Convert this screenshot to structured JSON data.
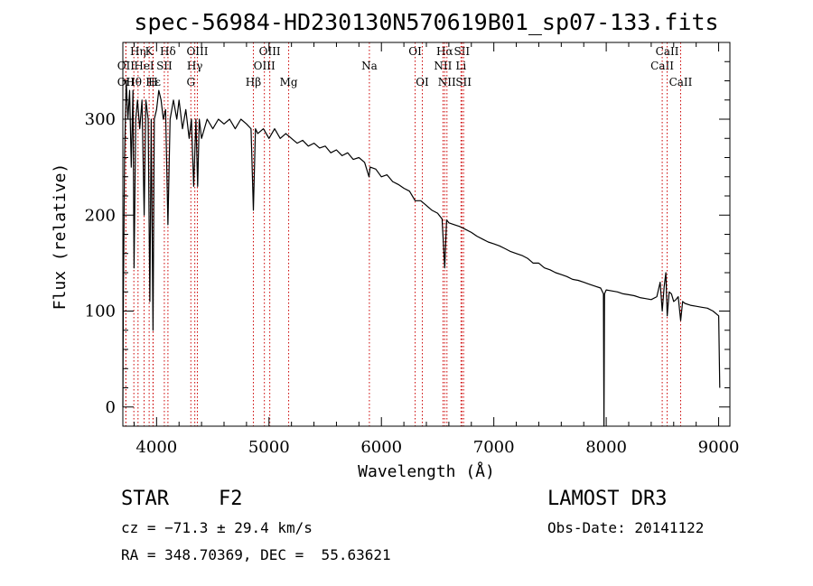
{
  "chart_data": {
    "type": "line",
    "title": "spec-56984-HD230130N570619B01_sp07-133.fits",
    "xlabel": "Wavelength (Å)",
    "ylabel": "Flux (relative)",
    "xlim": [
      3700,
      9100
    ],
    "ylim": [
      -20,
      380
    ],
    "xticks": [
      4000,
      5000,
      6000,
      7000,
      8000,
      9000
    ],
    "yticks": [
      0,
      100,
      200,
      300
    ],
    "grid": false,
    "series": [
      {
        "name": "spectrum",
        "points": [
          [
            3700,
            0
          ],
          [
            3705,
            120
          ],
          [
            3715,
            260
          ],
          [
            3730,
            340
          ],
          [
            3745,
            300
          ],
          [
            3760,
            330
          ],
          [
            3775,
            250
          ],
          [
            3790,
            330
          ],
          [
            3800,
            145
          ],
          [
            3815,
            300
          ],
          [
            3830,
            320
          ],
          [
            3850,
            290
          ],
          [
            3870,
            320
          ],
          [
            3890,
            200
          ],
          [
            3905,
            320
          ],
          [
            3925,
            300
          ],
          [
            3940,
            110
          ],
          [
            3952,
            300
          ],
          [
            3968,
            80
          ],
          [
            3980,
            300
          ],
          [
            4000,
            310
          ],
          [
            4020,
            330
          ],
          [
            4040,
            320
          ],
          [
            4060,
            300
          ],
          [
            4080,
            310
          ],
          [
            4101,
            190
          ],
          [
            4120,
            300
          ],
          [
            4150,
            320
          ],
          [
            4180,
            300
          ],
          [
            4200,
            320
          ],
          [
            4230,
            290
          ],
          [
            4260,
            310
          ],
          [
            4290,
            280
          ],
          [
            4310,
            300
          ],
          [
            4330,
            230
          ],
          [
            4350,
            300
          ],
          [
            4365,
            230
          ],
          [
            4380,
            300
          ],
          [
            4400,
            280
          ],
          [
            4450,
            300
          ],
          [
            4500,
            290
          ],
          [
            4550,
            300
          ],
          [
            4600,
            295
          ],
          [
            4650,
            300
          ],
          [
            4700,
            290
          ],
          [
            4750,
            300
          ],
          [
            4800,
            295
          ],
          [
            4840,
            290
          ],
          [
            4861,
            205
          ],
          [
            4880,
            290
          ],
          [
            4900,
            285
          ],
          [
            4950,
            290
          ],
          [
            5000,
            280
          ],
          [
            5050,
            290
          ],
          [
            5100,
            280
          ],
          [
            5150,
            285
          ],
          [
            5200,
            280
          ],
          [
            5250,
            275
          ],
          [
            5300,
            278
          ],
          [
            5350,
            272
          ],
          [
            5400,
            275
          ],
          [
            5450,
            270
          ],
          [
            5500,
            272
          ],
          [
            5550,
            265
          ],
          [
            5600,
            268
          ],
          [
            5650,
            262
          ],
          [
            5700,
            265
          ],
          [
            5750,
            258
          ],
          [
            5800,
            260
          ],
          [
            5850,
            255
          ],
          [
            5890,
            240
          ],
          [
            5900,
            250
          ],
          [
            5950,
            248
          ],
          [
            6000,
            240
          ],
          [
            6050,
            242
          ],
          [
            6100,
            235
          ],
          [
            6150,
            232
          ],
          [
            6200,
            228
          ],
          [
            6250,
            225
          ],
          [
            6300,
            215
          ],
          [
            6350,
            215
          ],
          [
            6400,
            210
          ],
          [
            6450,
            205
          ],
          [
            6500,
            202
          ],
          [
            6540,
            196
          ],
          [
            6563,
            145
          ],
          [
            6580,
            195
          ],
          [
            6600,
            192
          ],
          [
            6650,
            190
          ],
          [
            6700,
            188
          ],
          [
            6750,
            185
          ],
          [
            6800,
            182
          ],
          [
            6850,
            178
          ],
          [
            6900,
            175
          ],
          [
            6950,
            172
          ],
          [
            7000,
            170
          ],
          [
            7050,
            168
          ],
          [
            7100,
            165
          ],
          [
            7150,
            162
          ],
          [
            7200,
            160
          ],
          [
            7250,
            158
          ],
          [
            7300,
            155
          ],
          [
            7350,
            150
          ],
          [
            7400,
            150
          ],
          [
            7450,
            145
          ],
          [
            7500,
            143
          ],
          [
            7550,
            140
          ],
          [
            7600,
            138
          ],
          [
            7650,
            136
          ],
          [
            7700,
            133
          ],
          [
            7750,
            132
          ],
          [
            7800,
            130
          ],
          [
            7850,
            128
          ],
          [
            7900,
            126
          ],
          [
            7950,
            124
          ],
          [
            7975,
            118
          ],
          [
            7980,
            -20
          ],
          [
            7985,
            118
          ],
          [
            8000,
            122
          ],
          [
            8050,
            121
          ],
          [
            8100,
            120
          ],
          [
            8150,
            118
          ],
          [
            8200,
            117
          ],
          [
            8250,
            116
          ],
          [
            8300,
            114
          ],
          [
            8350,
            113
          ],
          [
            8400,
            112
          ],
          [
            8450,
            115
          ],
          [
            8480,
            130
          ],
          [
            8498,
            100
          ],
          [
            8515,
            125
          ],
          [
            8530,
            140
          ],
          [
            8542,
            95
          ],
          [
            8560,
            120
          ],
          [
            8580,
            118
          ],
          [
            8600,
            110
          ],
          [
            8620,
            112
          ],
          [
            8640,
            115
          ],
          [
            8662,
            90
          ],
          [
            8680,
            110
          ],
          [
            8700,
            108
          ],
          [
            8750,
            106
          ],
          [
            8800,
            105
          ],
          [
            8850,
            104
          ],
          [
            8900,
            103
          ],
          [
            8950,
            100
          ],
          [
            9000,
            95
          ],
          [
            9010,
            20
          ]
        ]
      }
    ],
    "spectral_lines": [
      {
        "label": "Hα",
        "wavelength": 6563,
        "row": 1
      },
      {
        "label": "Hβ",
        "wavelength": 4861,
        "row": 3
      },
      {
        "label": "Hγ",
        "wavelength": 4340,
        "row": 2
      },
      {
        "label": "Hδ",
        "wavelength": 4101,
        "row": 1
      },
      {
        "label": "Hε",
        "wavelength": 3970,
        "row": 3
      },
      {
        "label": "Hη",
        "wavelength": 3835,
        "row": 1
      },
      {
        "label": "Hθ",
        "wavelength": 3798,
        "row": 3
      },
      {
        "label": "K",
        "wavelength": 3934,
        "row": 1
      },
      {
        "label": "H",
        "wavelength": 3968,
        "row": 3
      },
      {
        "label": "G",
        "wavelength": 4305,
        "row": 3
      },
      {
        "label": "Mg",
        "wavelength": 5175,
        "row": 3
      },
      {
        "label": "Na",
        "wavelength": 5893,
        "row": 2
      },
      {
        "label": "OII",
        "wavelength": 3727,
        "row": 2
      },
      {
        "label": "OII",
        "wavelength": 3727,
        "row": 3
      },
      {
        "label": "HeI",
        "wavelength": 3889,
        "row": 2
      },
      {
        "label": "SII",
        "wavelength": 4069,
        "row": 2
      },
      {
        "label": "OIII",
        "wavelength": 4363,
        "row": 1
      },
      {
        "label": "OIII",
        "wavelength": 4959,
        "row": 2
      },
      {
        "label": "OIII",
        "wavelength": 5007,
        "row": 1
      },
      {
        "label": "OI",
        "wavelength": 6300,
        "row": 1
      },
      {
        "label": "OI",
        "wavelength": 6364,
        "row": 3
      },
      {
        "label": "NII",
        "wavelength": 6548,
        "row": 2
      },
      {
        "label": "NII",
        "wavelength": 6583,
        "row": 3
      },
      {
        "label": "Li",
        "wavelength": 6708,
        "row": 2
      },
      {
        "label": "SII",
        "wavelength": 6716,
        "row": 1
      },
      {
        "label": "SII",
        "wavelength": 6731,
        "row": 3
      },
      {
        "label": "CaII",
        "wavelength": 8498,
        "row": 2
      },
      {
        "label": "CaII",
        "wavelength": 8542,
        "row": 1
      },
      {
        "label": "CaII",
        "wavelength": 8662,
        "row": 3
      }
    ]
  },
  "info": {
    "object_class": "STAR",
    "subclass": "F2",
    "survey": "LAMOST DR3",
    "cz": "cz = −71.3 ± 29.4 km/s",
    "obs_date": "Obs-Date: 20141122",
    "coords": "RA = 348.70369, DEC =  55.63621"
  },
  "colors": {
    "spectrum": "#000000",
    "line_markers": "#cc0000",
    "axes": "#000000"
  }
}
